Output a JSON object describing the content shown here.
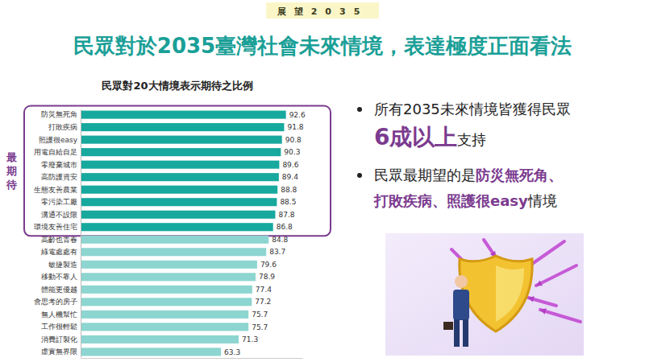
{
  "header": {
    "label": "展望2035",
    "title": "民眾對於2035臺灣社會未來情境，表達極度正面看法"
  },
  "chart_data": {
    "type": "bar",
    "orientation": "horizontal",
    "title": "民眾對20大情境表示期待之比例",
    "annotation": "最期待",
    "categories": [
      "防災無死角",
      "打敗疾病",
      "照護很easy",
      "用電自給自足",
      "零廢棄城市",
      "高防護資安",
      "生態友善農業",
      "零污染工廠",
      "溝通不設限",
      "環境友善住宅",
      "高齡也青春",
      "綠電處處有",
      "敏捷製造",
      "移動不靠人",
      "體能更優越",
      "會思考的房子",
      "無人機幫忙",
      "工作很輕鬆",
      "消費訂製化",
      "虛實無界限"
    ],
    "values": [
      92.6,
      91.8,
      90.8,
      90.3,
      89.6,
      89.4,
      88.8,
      88.5,
      87.8,
      86.8,
      84.8,
      83.7,
      79.6,
      78.9,
      77.4,
      77.2,
      75.7,
      75.7,
      71.3,
      63.3
    ],
    "colors": [
      "#17a89e",
      "#17a89e",
      "#17a89e",
      "#17a89e",
      "#17a89e",
      "#17a89e",
      "#17a89e",
      "#17a89e",
      "#17a89e",
      "#17a89e",
      "#8dd5d0",
      "#8dd5d0",
      "#8dd5d0",
      "#8dd5d0",
      "#8dd5d0",
      "#8dd5d0",
      "#8dd5d0",
      "#8dd5d0",
      "#8dd5d0",
      "#8dd5d0"
    ],
    "xlim": [
      0,
      100
    ],
    "data_labels": true,
    "tick_labels": "y",
    "grid": false
  },
  "bullets": [
    {
      "lines": [
        [
          {
            "text": "所有2035未來情境皆獲得民眾"
          }
        ],
        [
          {
            "text": "6成以上",
            "highlight": true
          },
          {
            "text": "支持"
          }
        ]
      ]
    },
    {
      "lines": [
        [
          {
            "text": "民眾最期望的是"
          },
          {
            "text": "防災無死角、",
            "highlight": true
          }
        ],
        [
          {
            "text": "打敗疾病、照護很easy",
            "highlight": true
          },
          {
            "text": "情境"
          }
        ]
      ]
    }
  ]
}
